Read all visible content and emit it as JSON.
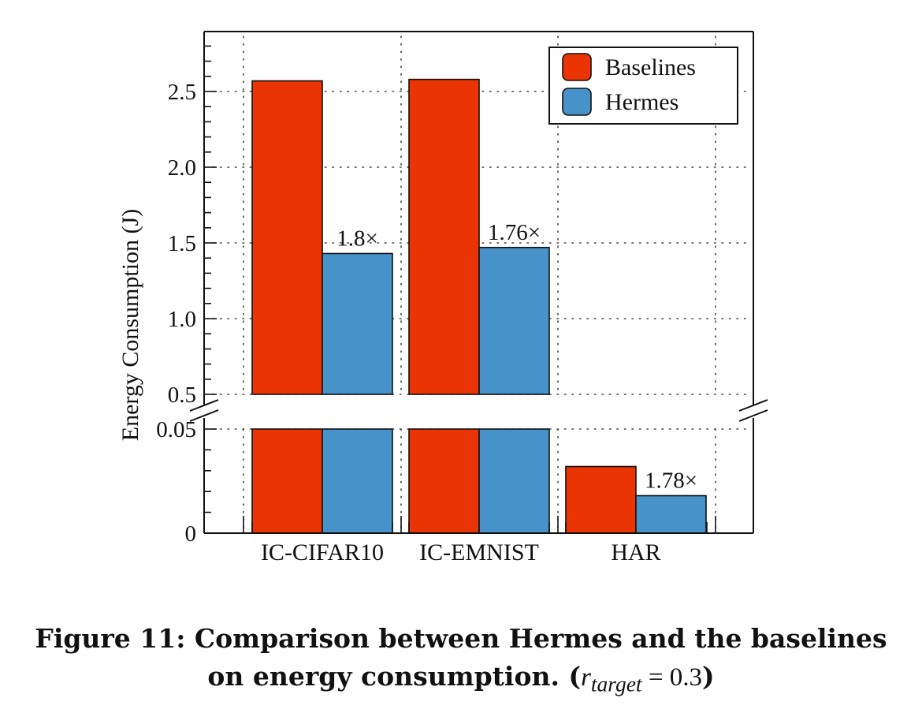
{
  "chart_data": {
    "type": "bar",
    "ylabel": "Energy Consumption (J)",
    "categories": [
      "IC-CIFAR10",
      "IC-EMNIST",
      "HAR"
    ],
    "series": [
      {
        "name": "Baselines",
        "color": "#ea3403",
        "values": [
          2.57,
          2.58,
          0.032
        ]
      },
      {
        "name": "Hermes",
        "color": "#4792c8",
        "values": [
          1.43,
          1.47,
          0.018
        ]
      }
    ],
    "annotations": [
      "1.8×",
      "1.76×",
      "1.78×"
    ],
    "axis": {
      "broken": true,
      "lower_segment": {
        "range": [
          0,
          0.05
        ],
        "ticks": [
          "0",
          "0.05"
        ]
      },
      "upper_segment": {
        "range": [
          0.5,
          2.85
        ],
        "ticks": [
          "0.5",
          "1.0",
          "1.5",
          "2.0",
          "2.5"
        ]
      }
    },
    "grid": "dotted",
    "legend_position": "top-right"
  },
  "caption": {
    "line1": "Figure 11: Comparison between Hermes and the baselines",
    "line2_prefix": "on energy consumption. (",
    "math_var": "r",
    "math_sub": "target",
    "math_rest": " = 0.3",
    "line2_suffix": ")"
  }
}
